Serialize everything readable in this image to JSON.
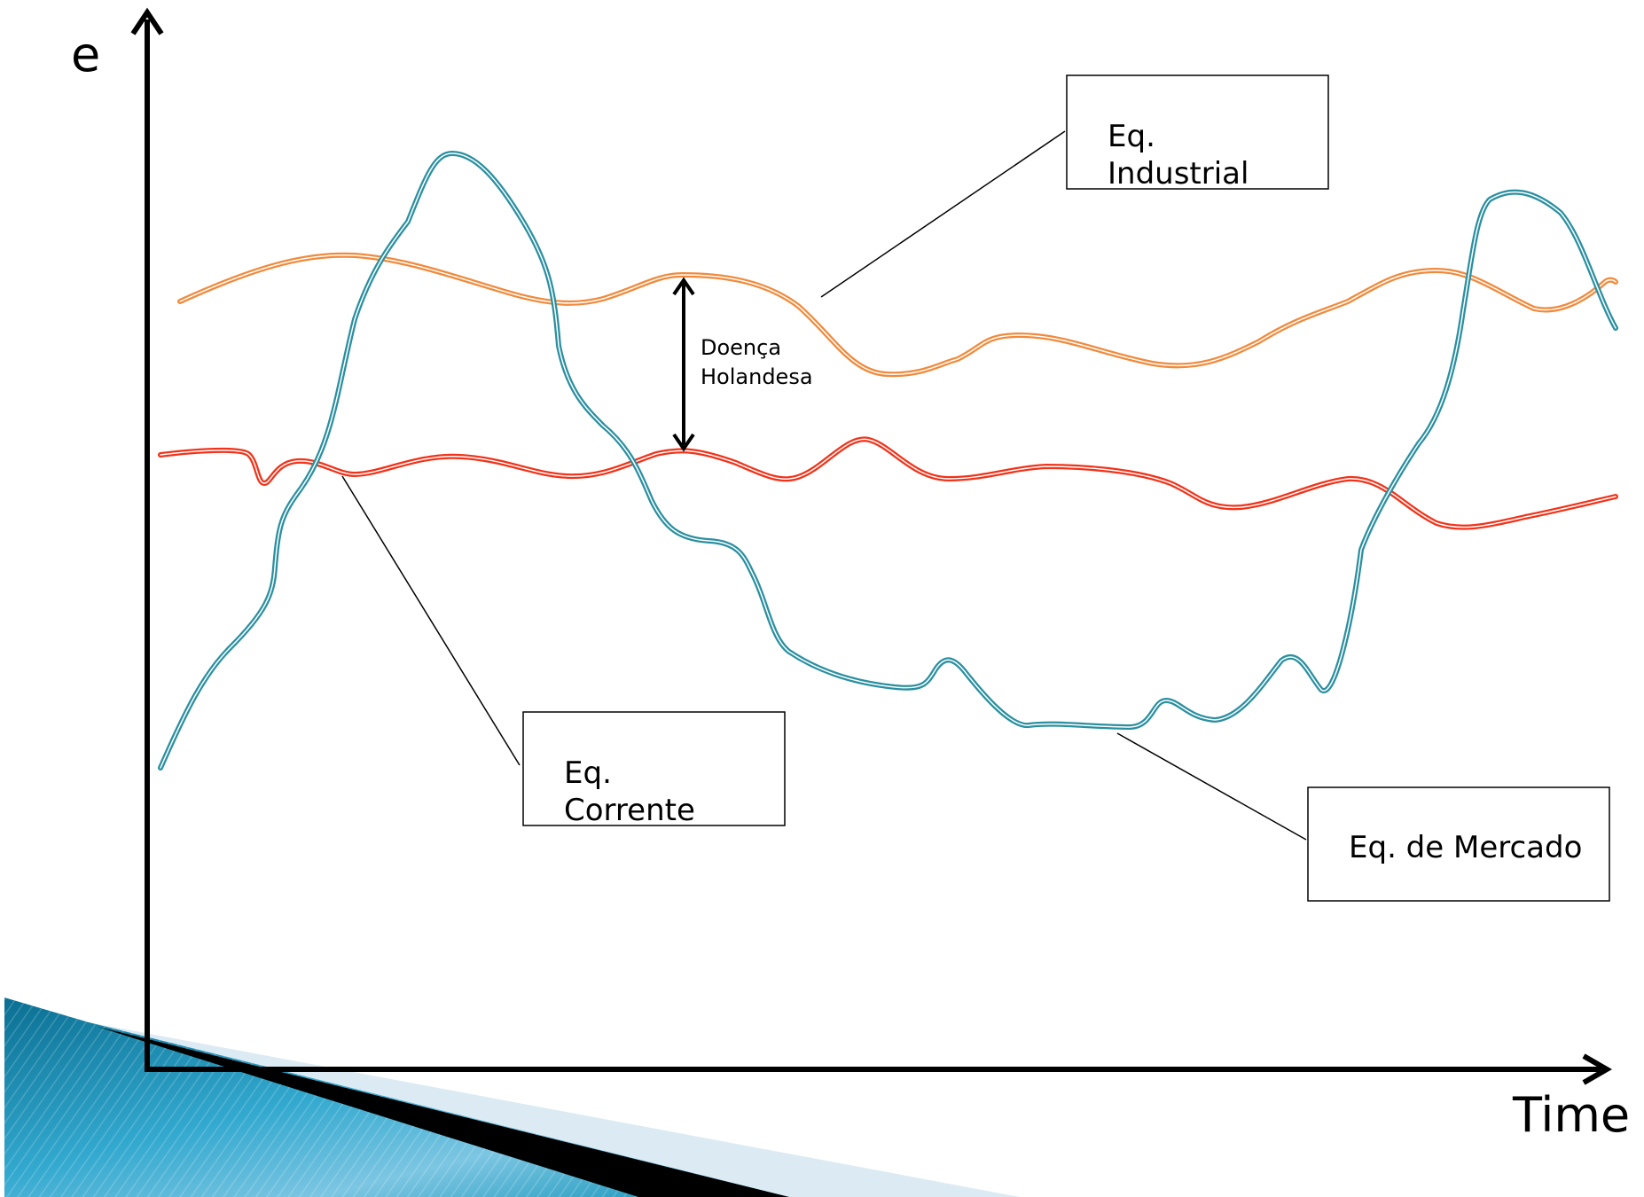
{
  "axes": {
    "y_label": "e",
    "x_label": "Time"
  },
  "annotations": {
    "industrial": [
      "Eq.",
      "Industrial"
    ],
    "corrente": [
      "Eq.",
      "Corrente"
    ],
    "mercado": "Eq. de Mercado",
    "gap": [
      "Doença",
      "Holandesa"
    ]
  },
  "series": [
    {
      "key": "industrial",
      "color": "#f08a3c",
      "label_ref": "annotations.industrial"
    },
    {
      "key": "corrente",
      "color": "#f0331a",
      "label_ref": "annotations.corrente"
    },
    {
      "key": "mercado",
      "color": "#2b8fa0",
      "label_ref": "annotations.mercado"
    }
  ],
  "decoration": {
    "blue": "#0a8fb5",
    "light_blue": "#dcebf3",
    "black": "#000000"
  }
}
